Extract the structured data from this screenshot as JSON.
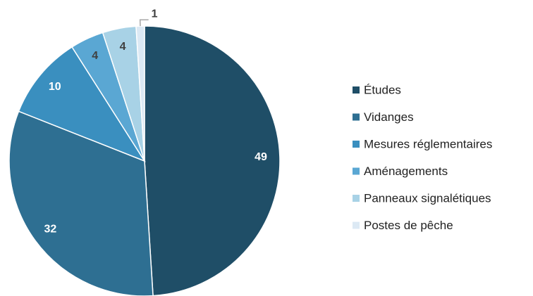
{
  "chart_data": {
    "type": "pie",
    "categories": [
      "Études",
      "Vidanges",
      "Mesures réglementaires",
      "Aménagements",
      "Panneaux signalétiques",
      "Postes de pêche"
    ],
    "values": [
      49,
      32,
      10,
      4,
      4,
      1
    ],
    "colors": [
      "#1f4e67",
      "#2e6f92",
      "#3a8fbf",
      "#5aa7d3",
      "#a8d2e6",
      "#dce9f4"
    ],
    "legend": "right"
  }
}
